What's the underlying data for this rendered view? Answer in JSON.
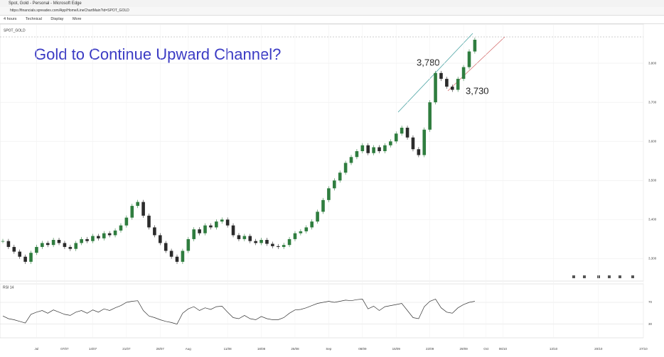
{
  "window": {
    "title": "Spot, Gold - Personal - Microsoft Edge",
    "url": "https://financials.spreadex.com/App/Home/LineChartMain?id=SPOT_GOLD"
  },
  "toolbar": {
    "items": [
      "4 hours",
      "Technical",
      "Display",
      "More"
    ]
  },
  "chart_data": {
    "type": "candlestick",
    "symbol": "SPOT_GOLD",
    "title": "Gold to Continue Upward Channel?",
    "annotations": [
      "3,780",
      "3,730"
    ],
    "up_color": "#2f7d3f",
    "down_color": "#2b2b2b",
    "categories": [
      null,
      null,
      null,
      null,
      null,
      null,
      "Jul",
      null,
      null,
      null,
      null,
      "07/07",
      null,
      null,
      null,
      null,
      "14/07",
      null,
      null,
      null,
      null,
      null,
      "21/07",
      null,
      null,
      null,
      null,
      null,
      "28/07",
      null,
      null,
      null,
      null,
      "Aug",
      null,
      null,
      null,
      null,
      null,
      null,
      "11/08",
      null,
      null,
      null,
      null,
      null,
      "18/08",
      null,
      null,
      null,
      null,
      null,
      "25/08",
      null,
      null,
      null,
      null,
      null,
      "Sep",
      null,
      null,
      null,
      null,
      null,
      "08/09",
      null,
      null,
      null,
      null,
      null,
      "15/09",
      null,
      null,
      null,
      null,
      null,
      "22/09",
      null,
      null,
      null,
      null,
      null,
      "29/09",
      null,
      null,
      null,
      "Oct",
      null,
      null,
      "06/10",
      null,
      null,
      null,
      null,
      null,
      null,
      null,
      null,
      "13/10",
      null,
      null,
      null,
      null,
      null,
      null,
      null,
      "20/10",
      null,
      null,
      null,
      null,
      null,
      null,
      null,
      "27/10"
    ],
    "close": [
      3345,
      3330,
      3318,
      3305,
      3292,
      3315,
      3330,
      3340,
      3335,
      3348,
      3340,
      3330,
      3325,
      3340,
      3350,
      3345,
      3358,
      3352,
      3365,
      3360,
      3372,
      3385,
      3405,
      3435,
      3445,
      3410,
      3380,
      3360,
      3340,
      3320,
      3305,
      3292,
      3320,
      3350,
      3375,
      3365,
      3385,
      3380,
      3395,
      3400,
      3385,
      3360,
      3350,
      3358,
      3345,
      3340,
      3348,
      3338,
      3332,
      3330,
      3335,
      3350,
      3365,
      3370,
      3380,
      3395,
      3420,
      3450,
      3480,
      3500,
      3520,
      3545,
      3560,
      3575,
      3590,
      3570,
      3585,
      3575,
      3590,
      3600,
      3620,
      3635,
      3610,
      3580,
      3565,
      3630,
      3700,
      3775,
      3760,
      3740,
      3732,
      3760,
      3790,
      3830,
      3860,
      null,
      null,
      null,
      null,
      null,
      null,
      null,
      null,
      null,
      null,
      null,
      null,
      null,
      null,
      null,
      null,
      null,
      null,
      null,
      null,
      null,
      null,
      null,
      null,
      null,
      null,
      null,
      null,
      null,
      null
    ],
    "ylim": [
      3250,
      3880
    ],
    "yticks": [
      {
        "value": 3300,
        "label": "3,300"
      },
      {
        "value": 3400,
        "label": "3,400"
      },
      {
        "value": 3500,
        "label": "3,500"
      },
      {
        "value": 3600,
        "label": "3,600"
      },
      {
        "value": 3700,
        "label": "3,700"
      },
      {
        "value": 3800,
        "label": "3,800"
      }
    ],
    "grid": true,
    "rsi": {
      "name": "RSI 14",
      "color": "#333333",
      "ylim": [
        10,
        100
      ],
      "yticks": [
        30,
        70
      ],
      "values": [
        45,
        40,
        38,
        35,
        32,
        48,
        52,
        55,
        50,
        56,
        52,
        48,
        46,
        52,
        55,
        50,
        56,
        52,
        58,
        55,
        60,
        64,
        70,
        72,
        73,
        55,
        45,
        42,
        38,
        35,
        33,
        30,
        50,
        58,
        62,
        55,
        60,
        57,
        62,
        63,
        52,
        42,
        40,
        46,
        40,
        38,
        44,
        40,
        38,
        38,
        42,
        50,
        56,
        57,
        60,
        64,
        68,
        70,
        72,
        70,
        72,
        74,
        73,
        75,
        76,
        58,
        63,
        55,
        62,
        64,
        66,
        68,
        55,
        42,
        40,
        62,
        72,
        76,
        60,
        52,
        50,
        60,
        66,
        70,
        72,
        null,
        null,
        null,
        null,
        null,
        null,
        null,
        null,
        null,
        null,
        null,
        null,
        null,
        null,
        null,
        null,
        null,
        null,
        null,
        null,
        null,
        null,
        null,
        null,
        null,
        null,
        null,
        null,
        null,
        null
      ]
    }
  }
}
